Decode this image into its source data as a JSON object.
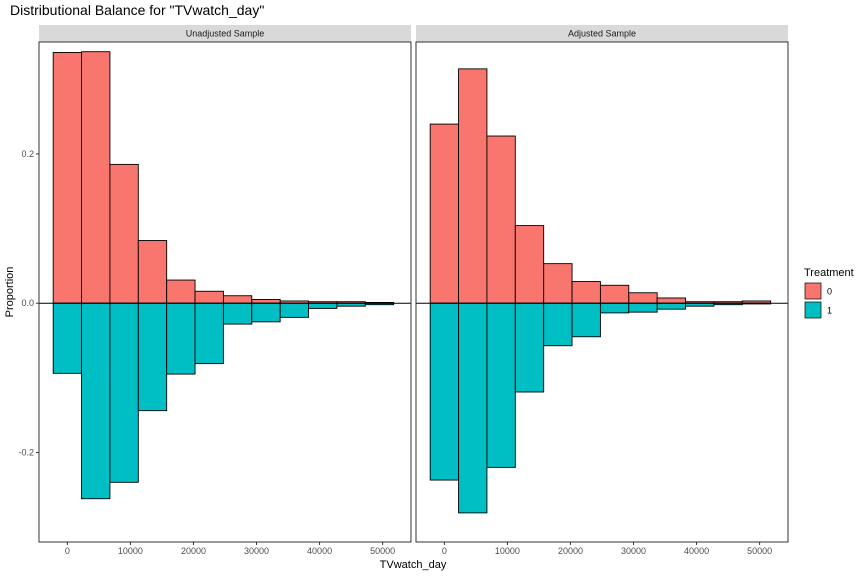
{
  "chart_data": {
    "type": "bar",
    "title": "Distributional Balance for \"TVwatch_day\"",
    "xlabel": "TVwatch_day",
    "ylabel": "Proportion",
    "xlim": [
      -4500,
      54500
    ],
    "ylim": [
      -0.32,
      0.35
    ],
    "x_ticks": [
      0,
      10000,
      20000,
      30000,
      40000,
      50000
    ],
    "y_ticks": [
      -0.2,
      0.0,
      0.2
    ],
    "y_tick_labels": [
      "-0.2",
      "0.0",
      "0.2"
    ],
    "bin_centers": [
      0,
      4500,
      9000,
      13500,
      18000,
      22500,
      27000,
      31500,
      36000,
      40500,
      45000,
      49500
    ],
    "bin_width": 4500,
    "legend": {
      "title": "Treatment",
      "entries": [
        {
          "label": "0",
          "color": "#F8766D"
        },
        {
          "label": "1",
          "color": "#00BFC4"
        }
      ]
    },
    "panels": [
      {
        "strip": "Unadjusted Sample",
        "series": [
          {
            "values": [
              0.336,
              0.337,
              0.186,
              0.084,
              0.031,
              0.016,
              0.01,
              0.005,
              0.003,
              0.002,
              0.002,
              0.001
            ]
          },
          {
            "values": [
              -0.094,
              -0.262,
              -0.24,
              -0.144,
              -0.095,
              -0.081,
              -0.028,
              -0.025,
              -0.019,
              -0.007,
              -0.004,
              -0.002
            ]
          }
        ]
      },
      {
        "strip": "Adjusted Sample",
        "series": [
          {
            "values": [
              0.24,
              0.314,
              0.224,
              0.104,
              0.053,
              0.029,
              0.024,
              0.014,
              0.007,
              0.002,
              0.002,
              0.003
            ]
          },
          {
            "values": [
              -0.237,
              -0.281,
              -0.22,
              -0.119,
              -0.057,
              -0.045,
              -0.013,
              -0.012,
              -0.008,
              -0.004,
              -0.002,
              -0.001
            ]
          }
        ]
      }
    ]
  }
}
